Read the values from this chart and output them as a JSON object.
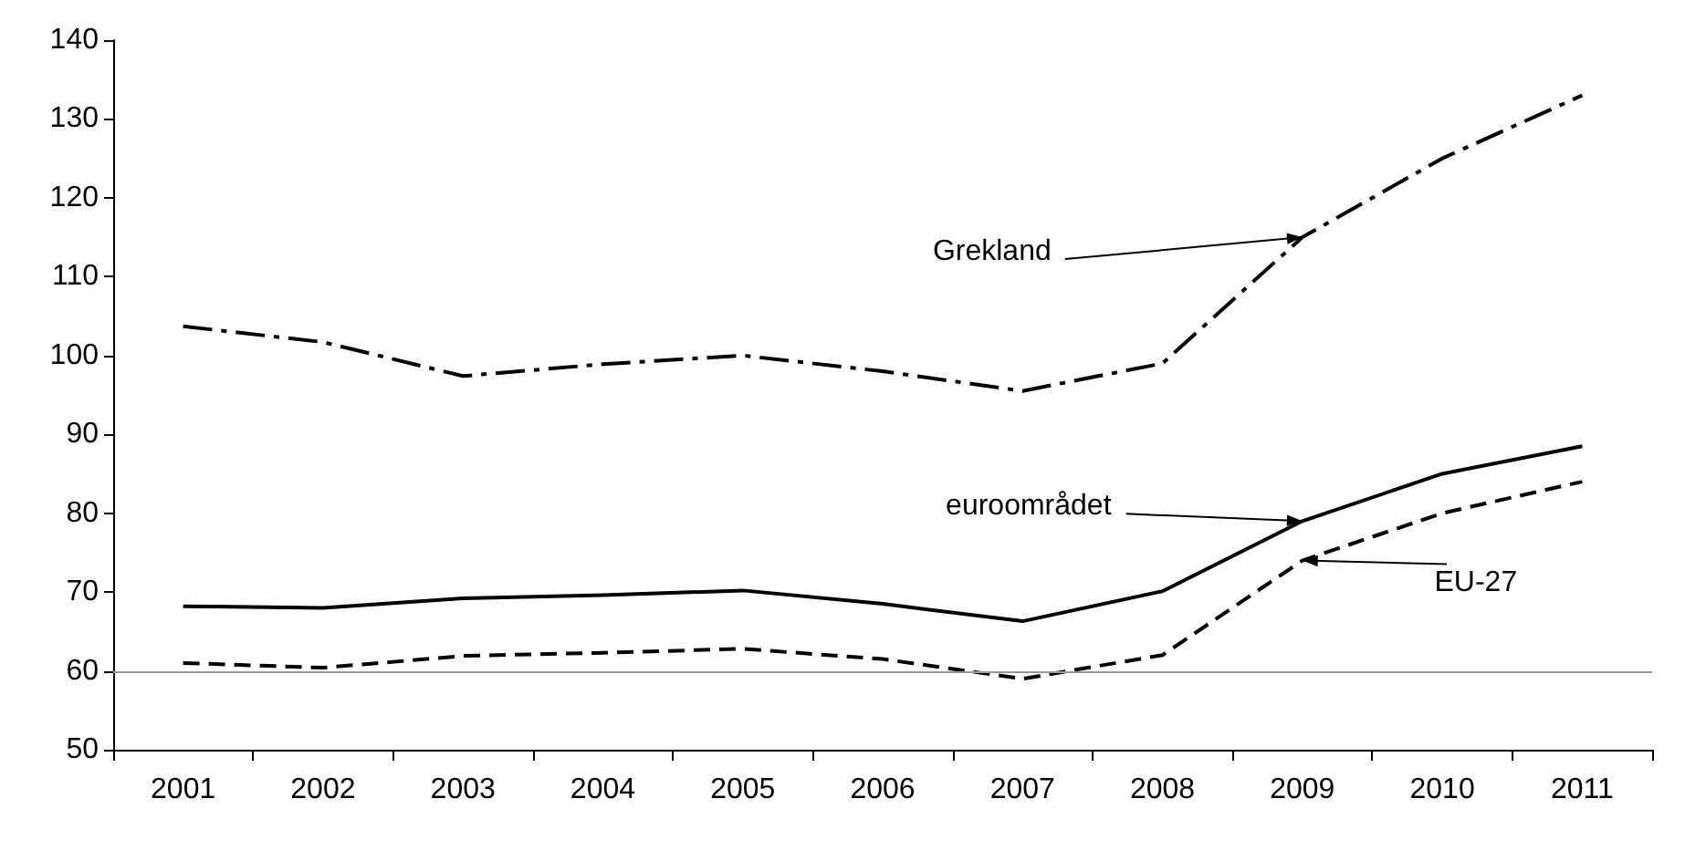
{
  "chart_data": {
    "type": "line",
    "categories": [
      "2001",
      "2002",
      "2003",
      "2004",
      "2005",
      "2006",
      "2007",
      "2008",
      "2009",
      "2010",
      "2011"
    ],
    "series": [
      {
        "color": "#000000",
        "line_style": "dashdot",
        "values": [
          103.7,
          101.7,
          97.4,
          98.9,
          100,
          98,
          95.5,
          99,
          115,
          125,
          133
        ]
      },
      {
        "color": "#000000",
        "line_style": "solid",
        "values": [
          68.2,
          68,
          69.2,
          69.6,
          70.2,
          68.5,
          66.3,
          70.1,
          79,
          85,
          88.5
        ]
      },
      {
        "color": "#000000",
        "line_style": "dashed",
        "values": [
          61,
          60.4,
          61.9,
          62.3,
          62.8,
          61.5,
          59,
          62,
          74,
          80,
          84
        ]
      }
    ],
    "ylim": [
      50,
      140
    ],
    "yticks": [
      50,
      60,
      70,
      80,
      90,
      100,
      110,
      120,
      130,
      140
    ],
    "ref_lines": [
      {
        "axis": "y",
        "value": 60,
        "color": "#999999"
      }
    ],
    "annotations": [
      {
        "text": "Grekland",
        "x": "2009",
        "y": 115
      },
      {
        "text": "euroområdet",
        "x": "2009",
        "y": 79
      },
      {
        "text": "EU-27",
        "x": "2009",
        "y": 74
      }
    ],
    "marker": "none",
    "grid": false
  }
}
